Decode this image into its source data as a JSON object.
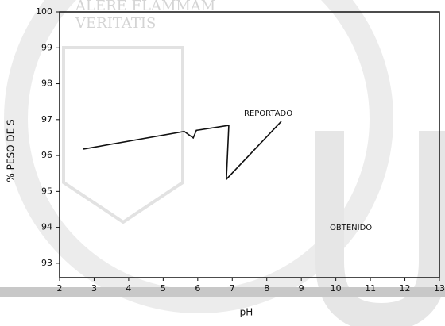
{
  "chart_data": {
    "type": "line",
    "x_label": "pH",
    "y_label": "% PESO DE S",
    "x": [
      2.69,
      5.61,
      5.87,
      5.96,
      6.9,
      6.83,
      8.42
    ],
    "series": [
      {
        "color": "#111111",
        "values": [
          96.18,
          96.67,
          96.49,
          96.7,
          96.84,
          95.34,
          96.95
        ]
      }
    ],
    "xlim": [
      2,
      13
    ],
    "xticks": [
      2,
      3,
      4,
      5,
      6,
      7,
      8,
      9,
      10,
      11,
      12,
      13
    ],
    "ylim": [
      92.6,
      100
    ],
    "yticks": [
      93,
      94,
      95,
      96,
      97,
      98,
      99,
      100
    ],
    "annotations": [
      "REPORTADO",
      "OBTENIDO"
    ],
    "watermark": [
      "ALERE FLAMMAM",
      "VERITATIS"
    ]
  }
}
